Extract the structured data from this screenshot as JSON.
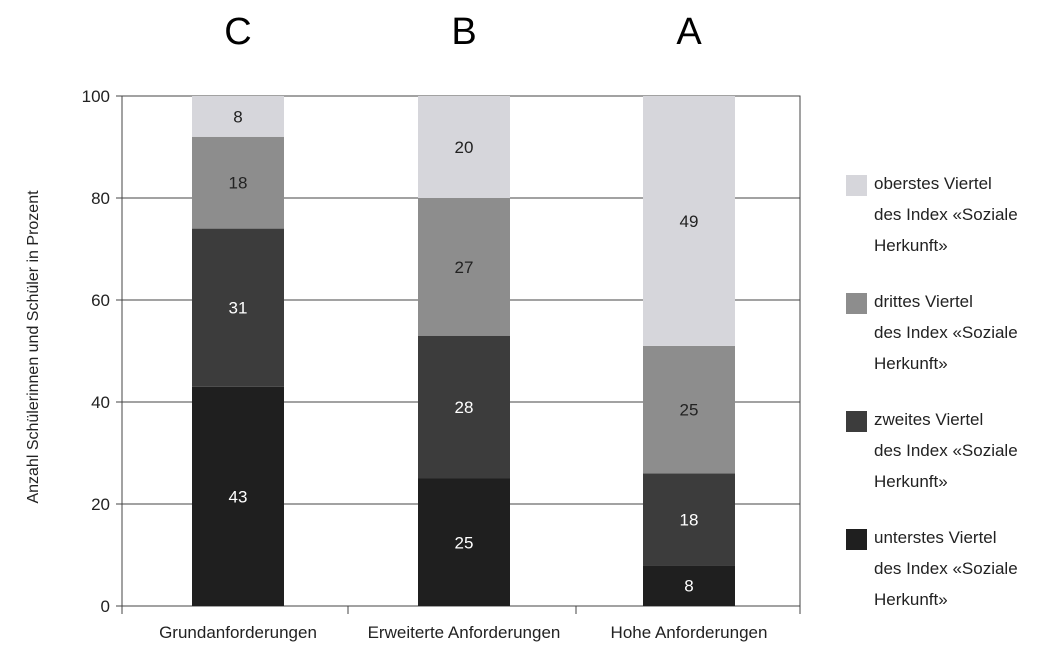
{
  "chart_data": {
    "type": "bar",
    "stacked": true,
    "column_letters": [
      "C",
      "B",
      "A"
    ],
    "categories": [
      "Grundanforderungen",
      "Erweiterte Anforderungen",
      "Hohe Anforderungen"
    ],
    "ylabel": "Anzahl Schülerinnen und Schüler in Prozent",
    "xlabel": "",
    "ylim": [
      0,
      100
    ],
    "yticks": [
      0,
      20,
      40,
      60,
      80,
      100
    ],
    "grid": true,
    "legend_position": "right",
    "series": [
      {
        "name": "unterstes Viertel\ndes Index «Soziale\nHerkunft»",
        "values": [
          43,
          25,
          8
        ],
        "color": "#1f1f1f"
      },
      {
        "name": "zweites Viertel\ndes Index «Soziale\nHerkunft»",
        "values": [
          31,
          28,
          18
        ],
        "color": "#3c3c3c"
      },
      {
        "name": "drittes Viertel\ndes Index «Soziale\nHerkunft»",
        "values": [
          18,
          27,
          25
        ],
        "color": "#8d8d8d"
      },
      {
        "name": "oberstes Viertel\ndes Index «Soziale\nHerkunft»",
        "values": [
          8,
          20,
          49
        ],
        "color": "#d6d6db"
      }
    ]
  }
}
